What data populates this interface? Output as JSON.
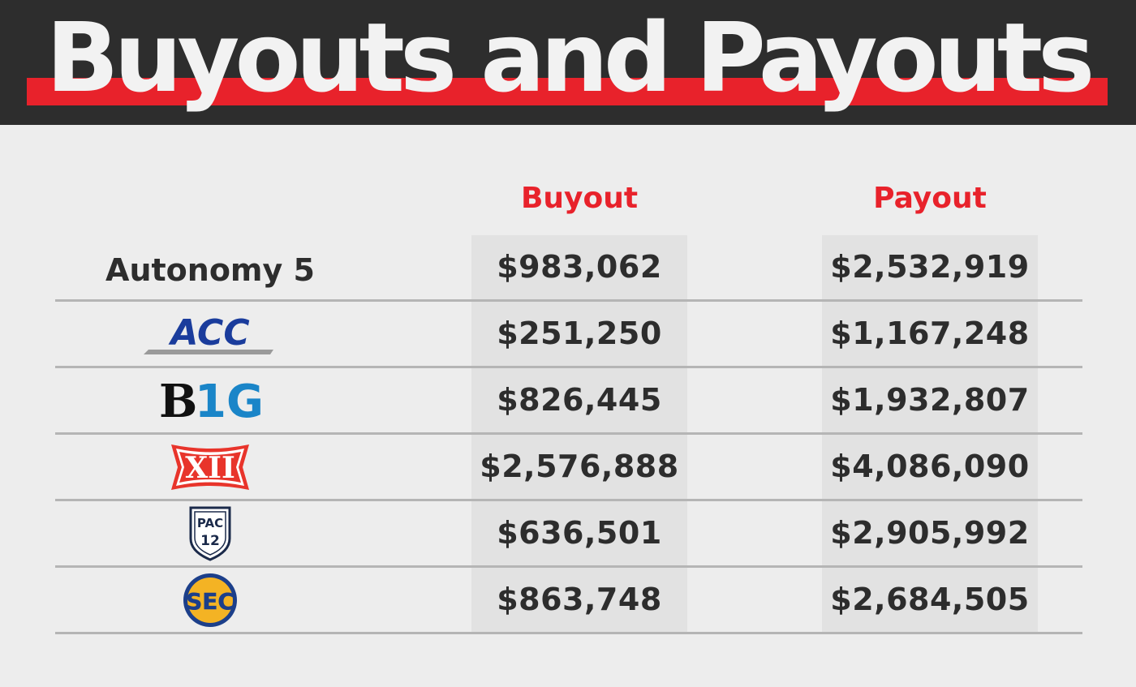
{
  "header": {
    "title": "Buyouts and Payouts"
  },
  "colors": {
    "accent": "#e8222b",
    "header_bg": "#2d2d2d",
    "text": "#2d2d2d",
    "page_bg": "#ededed"
  },
  "chart_data": {
    "type": "table",
    "title": "Buyouts and Payouts",
    "columns": [
      "Buyout",
      "Payout"
    ],
    "rows": [
      {
        "label": "Autonomy 5",
        "buyout": "$983,062",
        "payout": "$2,532,919"
      },
      {
        "label": "ACC",
        "logo": "acc-logo",
        "buyout": "$251,250",
        "payout": "$1,167,248"
      },
      {
        "label": "B1G",
        "logo": "big-ten-logo",
        "buyout": "$826,445",
        "payout": "$1,932,807"
      },
      {
        "label": "XII",
        "logo": "big-12-logo",
        "buyout": "$2,576,888",
        "payout": "$4,086,090"
      },
      {
        "label": "PAC 12",
        "logo": "pac-12-logo",
        "buyout": "$636,501",
        "payout": "$2,905,992"
      },
      {
        "label": "SEC",
        "logo": "sec-logo",
        "buyout": "$863,748",
        "payout": "$2,684,505"
      }
    ]
  }
}
